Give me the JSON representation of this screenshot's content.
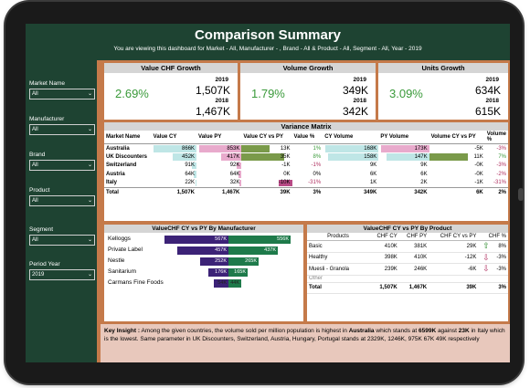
{
  "header": {
    "title": "Comparison Summary",
    "subtitle": "You are viewing this dashboard for Market - All, Manufacturer - , Brand - All & Product - All, Segment - All, Year - 2019"
  },
  "filters": [
    {
      "label": "Market Name",
      "value": "All"
    },
    {
      "label": "Manufacturer",
      "value": "All"
    },
    {
      "label": "Brand",
      "value": "All"
    },
    {
      "label": "Product",
      "value": "All"
    },
    {
      "label": "Segment",
      "value": "All"
    },
    {
      "label": "Period Year",
      "value": "2019"
    }
  ],
  "kpis": [
    {
      "title": "Value CHF Growth",
      "pct": "2.69%",
      "y1": "2019",
      "v1": "1,507K",
      "y2": "2018",
      "v2": "1,467K"
    },
    {
      "title": "Volume Growth",
      "pct": "1.79%",
      "y1": "2019",
      "v1": "349K",
      "y2": "2018",
      "v2": "342K"
    },
    {
      "title": "Units Growth",
      "pct": "3.09%",
      "y1": "2019",
      "v1": "634K",
      "y2": "2018",
      "v2": "615K"
    }
  ],
  "variance": {
    "title": "Variance Matrix",
    "columns": [
      "Market Name",
      "Value CY",
      "Value PY",
      "Value CY vs PY",
      "Value %",
      "CY Volume",
      "PY Volume",
      "Volume CY vs PY",
      "Volume %"
    ],
    "rows": [
      {
        "market": "Australia",
        "vcy": "866K",
        "vpy": "853K",
        "vdiff": "13K",
        "vpct": "1%",
        "cyvol": "168K",
        "pyvol": "173K",
        "voldiff": "-5K",
        "volpct": "-3%"
      },
      {
        "market": "UK Discounters",
        "vcy": "452K",
        "vpy": "417K",
        "vdiff": "35K",
        "vpct": "8%",
        "cyvol": "158K",
        "pyvol": "147K",
        "voldiff": "11K",
        "volpct": "7%"
      },
      {
        "market": "Switzerland",
        "vcy": "91K",
        "vpy": "92K",
        "vdiff": "-1K",
        "vpct": "-1%",
        "cyvol": "9K",
        "pyvol": "9K",
        "voldiff": "-0K",
        "volpct": "-3%"
      },
      {
        "market": "Austria",
        "vcy": "64K",
        "vpy": "64K",
        "vdiff": "0K",
        "vpct": "0%",
        "cyvol": "6K",
        "pyvol": "6K",
        "voldiff": "-0K",
        "volpct": "-2%"
      },
      {
        "market": "Italy",
        "vcy": "22K",
        "vpy": "32K",
        "vdiff": "-10K",
        "vpct": "-31%",
        "cyvol": "1K",
        "pyvol": "2K",
        "voldiff": "-1K",
        "volpct": "-31%"
      }
    ],
    "total": {
      "market": "Total",
      "vcy": "1,507K",
      "vpy": "1,467K",
      "vdiff": "39K",
      "vpct": "3%",
      "cyvol": "349K",
      "pyvol": "342K",
      "voldiff": "6K",
      "volpct": "2%"
    }
  },
  "manufacturer_chart": {
    "title": "ValueCHF CY vs PY By Manufacturer",
    "rows": [
      {
        "name": "Kelloggs",
        "cy": "567K",
        "py": "556K"
      },
      {
        "name": "Private Label",
        "cy": "457K",
        "py": "437K"
      },
      {
        "name": "Nestle",
        "cy": "252K",
        "py": "265K"
      },
      {
        "name": "Sanitarium",
        "cy": "176K",
        "py": "165K"
      },
      {
        "name": "Carmans Fine Foods",
        "cy": "54K",
        "py": "44K"
      }
    ]
  },
  "product_table": {
    "title": "ValueCHF CY vs PY By Product",
    "columns": [
      "Products",
      "CHF CY",
      "CHF PY",
      "CHF CY vs PY",
      "CHF %"
    ],
    "rows": [
      {
        "product": "Basic",
        "cy": "410K",
        "py": "381K",
        "diff": "29K",
        "trend": "up",
        "arrow": "⇧",
        "pct": "8%"
      },
      {
        "product": "Healthy",
        "cy": "398K",
        "py": "410K",
        "diff": "-12K",
        "trend": "down",
        "arrow": "⇩",
        "pct": "-3%"
      },
      {
        "product": "Muesli - Granola",
        "cy": "239K",
        "py": "246K",
        "diff": "-6K",
        "trend": "down",
        "arrow": "⇩",
        "pct": "-3%"
      },
      {
        "product": "Other",
        "cy": "",
        "py": "",
        "diff": "",
        "trend": "",
        "arrow": "",
        "pct": ""
      }
    ],
    "total": {
      "product": "Total",
      "cy": "1,507K",
      "py": "1,467K",
      "diff": "39K",
      "pct": "3%"
    }
  },
  "insight": {
    "label": "Key Insight :",
    "t1": " Among the given countries, the volume sold per million population is highest in ",
    "b1": "Australia",
    "t2": " which stands at ",
    "b2": "6599K",
    "t3": " against ",
    "b3": "23K",
    "t4": " in Italy which is the lowest. Same parameter in UK Discounters, Switzerland, Austria, Hungary, Portugal stands at 2329K, 1246K, 975K 67K 49K respectively"
  },
  "colors": {
    "header_bg": "#1e4332",
    "accent": "#c57a4a",
    "cy_bar": "#3c2277",
    "py_bar": "#1e7a4a",
    "positive": "#3a9a3a",
    "negative": "#b03060"
  }
}
